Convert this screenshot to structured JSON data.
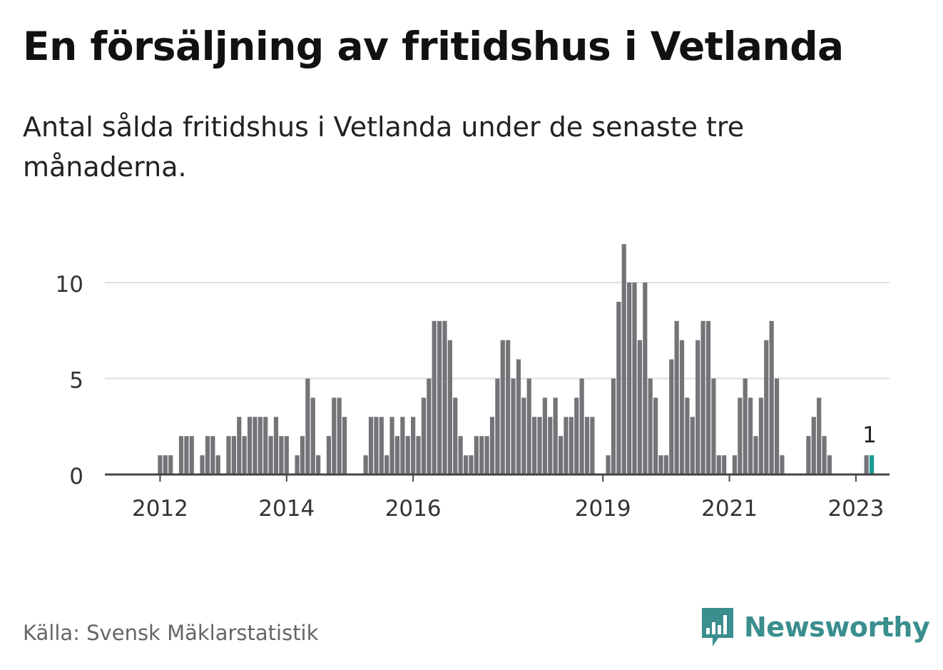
{
  "header": {
    "title": "En försäljning av fritidshus i Vetlanda",
    "subtitle": "Antal sålda fritidshus i Vetlanda under de senaste tre månaderna."
  },
  "footer": {
    "source": "Källa: Svensk Mäklarstatistik",
    "brand": "Newsworthy"
  },
  "colors": {
    "bar": "#737378",
    "highlight": "#1a9a96",
    "grid": "#dddddd",
    "axis": "#444444",
    "brand": "#3a8e8e"
  },
  "chart_data": {
    "type": "bar",
    "title": "En försäljning av fritidshus i Vetlanda",
    "subtitle": "Antal sålda fritidshus i Vetlanda under de senaste tre månaderna.",
    "xlabel": "",
    "ylabel": "",
    "ylim": [
      0,
      12
    ],
    "yticks": [
      0,
      5,
      10
    ],
    "grid": true,
    "xticks": [
      {
        "label": "2012",
        "month_index": 0
      },
      {
        "label": "2014",
        "month_index": 24
      },
      {
        "label": "2016",
        "month_index": 48
      },
      {
        "label": "2019",
        "month_index": 84
      },
      {
        "label": "2021",
        "month_index": 108
      },
      {
        "label": "2023",
        "month_index": 132
      }
    ],
    "start": "2011-06",
    "frequency": "monthly",
    "values": [
      0,
      0,
      0,
      0,
      0,
      0,
      0,
      1,
      1,
      1,
      0,
      2,
      2,
      2,
      0,
      1,
      2,
      2,
      1,
      0,
      2,
      2,
      3,
      2,
      3,
      3,
      3,
      3,
      2,
      3,
      2,
      2,
      0,
      1,
      2,
      5,
      4,
      1,
      0,
      2,
      4,
      4,
      3,
      0,
      0,
      0,
      1,
      3,
      3,
      3,
      1,
      3,
      2,
      3,
      2,
      3,
      2,
      4,
      5,
      8,
      8,
      8,
      7,
      4,
      2,
      1,
      1,
      2,
      2,
      2,
      3,
      5,
      7,
      7,
      5,
      6,
      4,
      5,
      3,
      3,
      4,
      3,
      4,
      2,
      3,
      3,
      4,
      5,
      3,
      3,
      0,
      0,
      1,
      5,
      9,
      12,
      10,
      10,
      7,
      10,
      5,
      4,
      1,
      1,
      6,
      8,
      7,
      4,
      3,
      7,
      8,
      8,
      5,
      1,
      1,
      0,
      1,
      4,
      5,
      4,
      2,
      4,
      7,
      8,
      5,
      1,
      0,
      0,
      0,
      0,
      2,
      3,
      4,
      2,
      1,
      0,
      0,
      0,
      0,
      0,
      0,
      1,
      1
    ],
    "highlight": {
      "index": 142,
      "label": "1"
    }
  }
}
